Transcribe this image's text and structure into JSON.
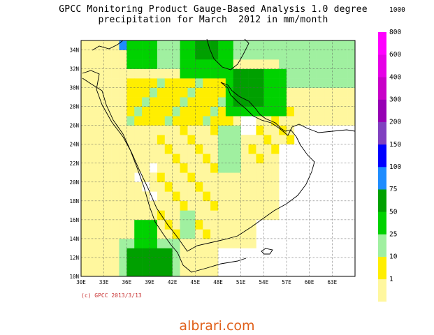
{
  "title": {
    "line1": "GPCC Monitoring Product Gauge-Based Analysis 1.0 degree",
    "line2": "precipitation for March  2012 in mm/month"
  },
  "map": {
    "lon_range": [
      30,
      66
    ],
    "lat_range": [
      10,
      35
    ],
    "x_ticks": [
      "30E",
      "33E",
      "36E",
      "39E",
      "42E",
      "45E",
      "48E",
      "51E",
      "54E",
      "57E",
      "60E",
      "63E"
    ],
    "y_ticks": [
      "10N",
      "12N",
      "14N",
      "16N",
      "18N",
      "20N",
      "22N",
      "24N",
      "26N",
      "28N",
      "30N",
      "32N",
      "34N"
    ]
  },
  "legend": {
    "labels": [
      "1000",
      "800",
      "600",
      "400",
      "300",
      "200",
      "150",
      "100",
      "75",
      "50",
      "25",
      "10",
      "1"
    ],
    "colors": [
      "#fff79e",
      "#ffee00",
      "#a0f0a0",
      "#00d200",
      "#00a000",
      "#1e8cff",
      "#0000ff",
      "#8040c0",
      "#9600b4",
      "#c800c8",
      "#e600e6",
      "#ff00ff"
    ]
  },
  "copyright": "(c) GPCC 2013/3/13",
  "watermark": "albrari.com"
}
